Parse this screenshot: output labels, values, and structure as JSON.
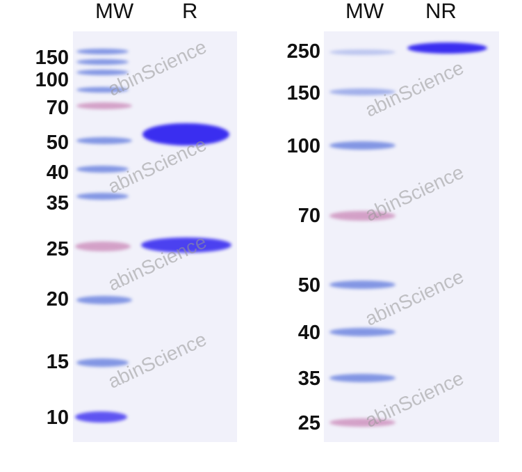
{
  "left_panel": {
    "lanes": [
      "MW",
      "R"
    ],
    "markers_kda": [
      "150",
      "100",
      "70",
      "50",
      "40",
      "35",
      "25",
      "20",
      "15",
      "10"
    ]
  },
  "right_panel": {
    "lanes": [
      "MW",
      "NR"
    ],
    "markers_kda": [
      "250",
      "150",
      "100",
      "70",
      "50",
      "40",
      "35",
      "25"
    ]
  },
  "colors": {
    "stain": "#3a2ef0",
    "marker_blue": "#6f86e0",
    "marker_pink": "#c06ca6"
  },
  "watermark": "abinScience"
}
